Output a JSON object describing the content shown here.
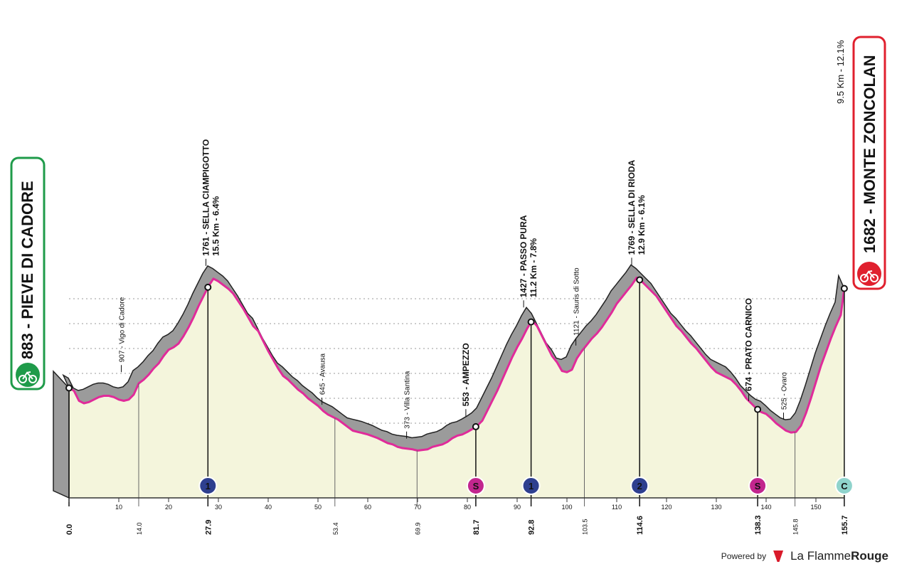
{
  "chart_data": {
    "type": "area",
    "subtitle": "",
    "xlabel": "",
    "ylabel": "",
    "xlim": [
      -3,
      158
    ],
    "ylim": [
      0,
      1700
    ],
    "x_ticks": [
      0,
      10,
      20,
      30,
      40,
      50,
      60,
      70,
      80,
      90,
      100,
      110,
      120,
      130,
      140,
      150
    ],
    "y_ticks": [
      400,
      600,
      800,
      1000,
      1200,
      1400,
      1600
    ],
    "profile": [
      [
        0,
        883
      ],
      [
        1,
        860
      ],
      [
        2,
        780
      ],
      [
        3,
        760
      ],
      [
        4,
        770
      ],
      [
        5,
        790
      ],
      [
        6,
        810
      ],
      [
        7,
        820
      ],
      [
        8,
        820
      ],
      [
        9,
        810
      ],
      [
        10,
        790
      ],
      [
        11,
        780
      ],
      [
        12,
        790
      ],
      [
        13,
        830
      ],
      [
        14,
        920
      ],
      [
        15,
        950
      ],
      [
        16,
        990
      ],
      [
        17,
        1040
      ],
      [
        18,
        1080
      ],
      [
        19,
        1140
      ],
      [
        20,
        1190
      ],
      [
        21,
        1210
      ],
      [
        22,
        1240
      ],
      [
        23,
        1300
      ],
      [
        24,
        1370
      ],
      [
        25,
        1450
      ],
      [
        26,
        1540
      ],
      [
        27,
        1620
      ],
      [
        28,
        1700
      ],
      [
        29,
        1761
      ],
      [
        30,
        1740
      ],
      [
        31,
        1710
      ],
      [
        32,
        1680
      ],
      [
        33,
        1640
      ],
      [
        34,
        1580
      ],
      [
        35,
        1520
      ],
      [
        36,
        1450
      ],
      [
        37,
        1380
      ],
      [
        38,
        1340
      ],
      [
        39,
        1260
      ],
      [
        40,
        1180
      ],
      [
        41,
        1110
      ],
      [
        42,
        1040
      ],
      [
        43,
        980
      ],
      [
        44,
        950
      ],
      [
        45,
        910
      ],
      [
        46,
        870
      ],
      [
        47,
        840
      ],
      [
        48,
        800
      ],
      [
        49,
        770
      ],
      [
        50,
        740
      ],
      [
        51,
        700
      ],
      [
        52,
        670
      ],
      [
        53,
        650
      ],
      [
        54,
        630
      ],
      [
        55,
        600
      ],
      [
        56,
        570
      ],
      [
        57,
        540
      ],
      [
        58,
        530
      ],
      [
        59,
        520
      ],
      [
        60,
        510
      ],
      [
        61,
        495
      ],
      [
        62,
        480
      ],
      [
        63,
        460
      ],
      [
        64,
        440
      ],
      [
        65,
        430
      ],
      [
        66,
        410
      ],
      [
        67,
        400
      ],
      [
        68,
        395
      ],
      [
        69,
        390
      ],
      [
        70,
        380
      ],
      [
        71,
        385
      ],
      [
        72,
        390
      ],
      [
        73,
        410
      ],
      [
        74,
        420
      ],
      [
        75,
        430
      ],
      [
        76,
        450
      ],
      [
        77,
        480
      ],
      [
        78,
        500
      ],
      [
        79,
        510
      ],
      [
        80,
        530
      ],
      [
        81,
        553
      ],
      [
        82,
        580
      ],
      [
        83,
        620
      ],
      [
        84,
        700
      ],
      [
        85,
        780
      ],
      [
        86,
        860
      ],
      [
        87,
        950
      ],
      [
        88,
        1040
      ],
      [
        89,
        1130
      ],
      [
        90,
        1210
      ],
      [
        91,
        1280
      ],
      [
        92,
        1360
      ],
      [
        93,
        1427
      ],
      [
        94,
        1380
      ],
      [
        95,
        1300
      ],
      [
        96,
        1220
      ],
      [
        97,
        1140
      ],
      [
        98,
        1090
      ],
      [
        99,
        1020
      ],
      [
        100,
        1010
      ],
      [
        101,
        1030
      ],
      [
        102,
        1121
      ],
      [
        103,
        1180
      ],
      [
        104,
        1230
      ],
      [
        105,
        1280
      ],
      [
        106,
        1320
      ],
      [
        107,
        1370
      ],
      [
        108,
        1430
      ],
      [
        109,
        1490
      ],
      [
        110,
        1560
      ],
      [
        111,
        1610
      ],
      [
        112,
        1660
      ],
      [
        113,
        1710
      ],
      [
        114,
        1769
      ],
      [
        115,
        1740
      ],
      [
        116,
        1700
      ],
      [
        117,
        1660
      ],
      [
        118,
        1620
      ],
      [
        119,
        1560
      ],
      [
        120,
        1500
      ],
      [
        121,
        1440
      ],
      [
        122,
        1380
      ],
      [
        123,
        1340
      ],
      [
        124,
        1290
      ],
      [
        125,
        1240
      ],
      [
        126,
        1200
      ],
      [
        127,
        1150
      ],
      [
        128,
        1100
      ],
      [
        129,
        1050
      ],
      [
        130,
        1010
      ],
      [
        131,
        990
      ],
      [
        132,
        970
      ],
      [
        133,
        950
      ],
      [
        134,
        910
      ],
      [
        135,
        860
      ],
      [
        136,
        800
      ],
      [
        137,
        760
      ],
      [
        138,
        720
      ],
      [
        139,
        690
      ],
      [
        140,
        674
      ],
      [
        141,
        640
      ],
      [
        142,
        600
      ],
      [
        143,
        570
      ],
      [
        144,
        540
      ],
      [
        145,
        525
      ],
      [
        146,
        530
      ],
      [
        147,
        580
      ],
      [
        148,
        680
      ],
      [
        149,
        800
      ],
      [
        150,
        930
      ],
      [
        151,
        1060
      ],
      [
        152,
        1170
      ],
      [
        153,
        1280
      ],
      [
        154,
        1380
      ],
      [
        155,
        1470
      ],
      [
        155.7,
        1682
      ]
    ],
    "start": {
      "km": 0,
      "alt": 883
    },
    "finish_marker_km": 155.7,
    "km_labels": [
      {
        "km": 0.0,
        "label": "0.0",
        "bold": true
      },
      {
        "km": 14.0,
        "label": "14.0",
        "bold": false
      },
      {
        "km": 27.9,
        "label": "27.9",
        "bold": true
      },
      {
        "km": 53.4,
        "label": "53.4",
        "bold": false
      },
      {
        "km": 69.9,
        "label": "69.9",
        "bold": false
      },
      {
        "km": 81.7,
        "label": "81.7",
        "bold": true
      },
      {
        "km": 92.8,
        "label": "92.8",
        "bold": true
      },
      {
        "km": 103.5,
        "label": "103.5",
        "bold": false
      },
      {
        "km": 114.6,
        "label": "114.6",
        "bold": true
      },
      {
        "km": 138.3,
        "label": "138.3",
        "bold": true
      },
      {
        "km": 145.8,
        "label": "145.8",
        "bold": false
      },
      {
        "km": 155.7,
        "label": "155.7",
        "bold": true
      }
    ],
    "places": [
      {
        "km": 10.5,
        "alt": 907,
        "text": "907 - Vigo di Cadore",
        "bold": false
      },
      {
        "km": 27.5,
        "alt": 1761,
        "text": "1761 - SELLA CIAMPIGOTTO",
        "sub": "15.5 Km - 6.4%",
        "bold": true
      },
      {
        "km": 50.8,
        "alt": 645,
        "text": "645 - Avausa",
        "bold": false
      },
      {
        "km": 67.8,
        "alt": 373,
        "text": "373 - Villa Santina",
        "bold": false
      },
      {
        "km": 79.7,
        "alt": 553,
        "text": "553 - AMPEZZO",
        "bold": true
      },
      {
        "km": 91.3,
        "alt": 1427,
        "text": "1427 - PASSO PURA",
        "sub": "11.2 Km - 7.8%",
        "bold": true
      },
      {
        "km": 101.8,
        "alt": 1121,
        "text": "1121 - Sauris di Sotto",
        "bold": false
      },
      {
        "km": 113.0,
        "alt": 1769,
        "text": "1769 - SELLA DI RIODA",
        "sub": "12.9 Km - 6.1%",
        "bold": true
      },
      {
        "km": 136.5,
        "alt": 674,
        "text": "674 - PRATO CARNICO",
        "bold": true
      },
      {
        "km": 143.5,
        "alt": 525,
        "text": "525 - Ovaro",
        "bold": false
      }
    ],
    "icons": [
      {
        "km": 27.9,
        "type": "kom",
        "symbol": "1",
        "color": "#2e3f8f"
      },
      {
        "km": 81.7,
        "type": "sprint",
        "symbol": "S",
        "color": "#c2268e"
      },
      {
        "km": 92.8,
        "type": "kom",
        "symbol": "1",
        "color": "#2e3f8f"
      },
      {
        "km": 114.6,
        "type": "kom",
        "symbol": "2",
        "color": "#2e3f8f"
      },
      {
        "km": 138.3,
        "type": "sprint",
        "symbol": "S",
        "color": "#c2268e"
      },
      {
        "km": 155.7,
        "type": "finish",
        "symbol": "C",
        "color": "#8fd3cc"
      }
    ],
    "colors": {
      "profile_fill": "#f4f5dc",
      "road_line": "#e02b9a",
      "relief": "#9b9b9b",
      "start_box": "#1f9b4a",
      "finish_box": "#e0202e",
      "grid": "#999999"
    }
  },
  "start_label": "883 - PIEVE DI CADORE",
  "finish_label": "1682 - MONTE ZONCOLAN",
  "finish_climb": "9.5 Km - 12.1%",
  "footer": {
    "powered": "Powered by",
    "brand_a": "La Flamme",
    "brand_b": "Rouge"
  }
}
